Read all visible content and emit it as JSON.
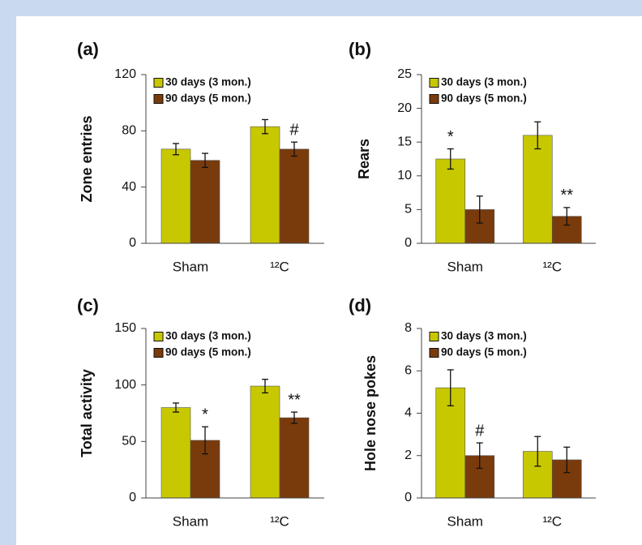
{
  "chart_data": [
    {
      "type": "bar",
      "title": "(a)",
      "y_label": "Zone entries",
      "categories": [
        "Sham",
        "¹²C"
      ],
      "series": [
        {
          "name": "30 days (3 mon.)",
          "color": "#c8c800",
          "values": [
            67,
            83
          ],
          "errors": [
            4,
            5
          ]
        },
        {
          "name": "90 days (5 mon.)",
          "color": "#7a3b0c",
          "values": [
            59,
            67
          ],
          "errors": [
            5,
            5
          ]
        }
      ],
      "ylim": [
        0,
        120
      ],
      "yticks": [
        0,
        40,
        80,
        120
      ],
      "annotations": [
        {
          "text": "#",
          "category": "¹²C",
          "series": "90 days (5 mon.)"
        }
      ]
    },
    {
      "type": "bar",
      "title": "(b)",
      "y_label": "Rears",
      "categories": [
        "Sham",
        "¹²C"
      ],
      "series": [
        {
          "name": "30 days (3 mon.)",
          "color": "#c8c800",
          "values": [
            12.5,
            16
          ],
          "errors": [
            1.5,
            2
          ]
        },
        {
          "name": "90 days (5 mon.)",
          "color": "#7a3b0c",
          "values": [
            5,
            4
          ],
          "errors": [
            2,
            1.3
          ]
        }
      ],
      "ylim": [
        0,
        25
      ],
      "yticks": [
        0,
        5,
        10,
        15,
        20,
        25
      ],
      "annotations": [
        {
          "text": "*",
          "category": "Sham",
          "series": "30 days (3 mon.)"
        },
        {
          "text": "**",
          "category": "¹²C",
          "series": "90 days (5 mon.)"
        }
      ]
    },
    {
      "type": "bar",
      "title": "(c)",
      "y_label": "Total activity",
      "categories": [
        "Sham",
        "¹²C"
      ],
      "series": [
        {
          "name": "30 days (3 mon.)",
          "color": "#c8c800",
          "values": [
            80,
            99
          ],
          "errors": [
            4,
            6
          ]
        },
        {
          "name": "90 days (5 mon.)",
          "color": "#7a3b0c",
          "values": [
            51,
            71
          ],
          "errors": [
            12,
            5
          ]
        }
      ],
      "ylim": [
        0,
        150
      ],
      "yticks": [
        0,
        50,
        100,
        150
      ],
      "annotations": [
        {
          "text": "*",
          "category": "Sham",
          "series": "90 days (5 mon.)"
        },
        {
          "text": "**",
          "category": "¹²C",
          "series": "90 days (5 mon.)"
        }
      ]
    },
    {
      "type": "bar",
      "title": "(d)",
      "y_label": "Hole nose pokes",
      "categories": [
        "Sham",
        "¹²C"
      ],
      "series": [
        {
          "name": "30 days (3 mon.)",
          "color": "#c8c800",
          "values": [
            5.2,
            2.2
          ],
          "errors": [
            0.85,
            0.7
          ]
        },
        {
          "name": "90 days (5 mon.)",
          "color": "#7a3b0c",
          "values": [
            2,
            1.8
          ],
          "errors": [
            0.6,
            0.6
          ]
        }
      ],
      "ylim": [
        0,
        8
      ],
      "yticks": [
        0,
        2,
        4,
        6,
        8
      ],
      "annotations": [
        {
          "text": "#",
          "category": "Sham",
          "series": "90 days (5 mon.)"
        }
      ]
    }
  ]
}
